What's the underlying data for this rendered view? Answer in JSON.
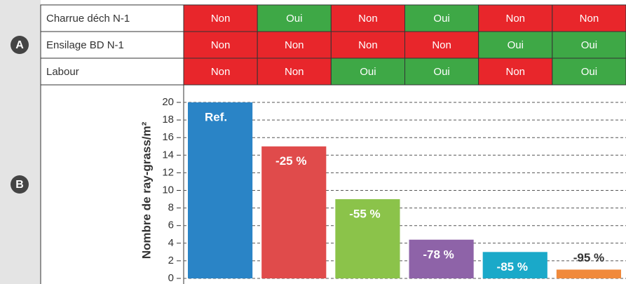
{
  "markers": [
    "A",
    "B"
  ],
  "table": {
    "cell_colors": {
      "Non": "#e8262b",
      "Oui": "#3ea846"
    },
    "rows": [
      {
        "label": "Charrue déch N-1",
        "cells": [
          "Non",
          "Oui",
          "Non",
          "Oui",
          "Non",
          "Non"
        ]
      },
      {
        "label": "Ensilage BD N-1",
        "cells": [
          "Non",
          "Non",
          "Non",
          "Non",
          "Oui",
          "Oui"
        ]
      },
      {
        "label": "Labour",
        "cells": [
          "Non",
          "Non",
          "Oui",
          "Oui",
          "Non",
          "Oui"
        ]
      }
    ]
  },
  "chart_data": {
    "type": "bar",
    "y_label": "Nombre de ray-grass/m²",
    "values": [
      20,
      15,
      9,
      4.4,
      3,
      1
    ],
    "colors": [
      "#2a84c6",
      "#e04b4b",
      "#8bc34a",
      "#8e63a8",
      "#1aa9c9",
      "#f08a3c"
    ],
    "annotations": [
      "Ref.",
      "-25 %",
      "-55 %",
      "-78 %",
      "-85 %",
      "-95 %"
    ],
    "ylim": [
      0,
      20
    ],
    "yticks": [
      0,
      2,
      4,
      6,
      8,
      10,
      12,
      14,
      16,
      18,
      20
    ],
    "grid": true
  }
}
